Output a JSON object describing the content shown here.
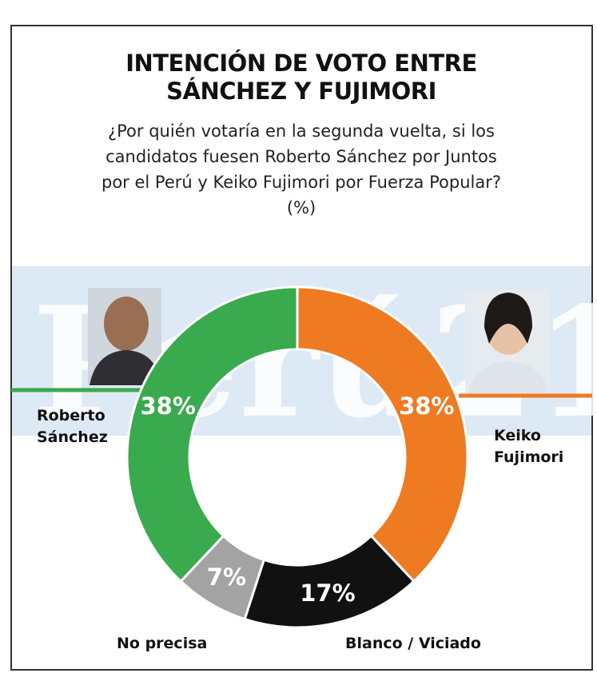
{
  "chart_data": {
    "type": "donut",
    "title": "INTENCIÓN DE VOTO ENTRE SÁNCHEZ Y FUJIMORI",
    "subtitle": "¿Por quién votaría en la segunda vuelta, si los candidatos fuesen Roberto Sánchez por Juntos por el Perú y Keiko Fujimori por Fuerza Popular? (%)",
    "watermark": "Perú21",
    "categories": [
      "Keiko Fujimori",
      "Blanco / Viciado",
      "No precisa",
      "Roberto Sánchez"
    ],
    "values": [
      38,
      17,
      7,
      38
    ],
    "value_labels": [
      "38%",
      "17%",
      "7%",
      "38%"
    ],
    "colors": [
      "#ee7a22",
      "#111111",
      "#a3a3a3",
      "#3aaa4e"
    ]
  }
}
